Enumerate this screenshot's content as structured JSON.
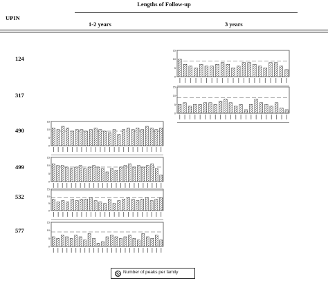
{
  "header": {
    "title": "Lengths of Follow-up",
    "upin_label": "UPIN",
    "col1": "1-2 years",
    "col2": "3 years"
  },
  "rows": [
    {
      "label": "124"
    },
    {
      "label": "317"
    },
    {
      "label": "490"
    },
    {
      "label": "499"
    },
    {
      "label": "532"
    },
    {
      "label": "577"
    }
  ],
  "legend": {
    "label": "Number of peaks per family"
  },
  "chart_data": [
    {
      "type": "bar",
      "upin": "124",
      "follow_up": "3 years",
      "ylim": [
        0,
        15
      ],
      "yticks": [
        "0",
        "5",
        "10",
        "15"
      ],
      "values": [
        10,
        7,
        6,
        5,
        7,
        6,
        6,
        7,
        8,
        7,
        5,
        6,
        8,
        8,
        7,
        6,
        5,
        8,
        8,
        6,
        4
      ]
    },
    {
      "type": "bar",
      "upin": "317",
      "follow_up": "3 years",
      "ylim": [
        0,
        15
      ],
      "yticks": [
        "0",
        "5",
        "10",
        "15"
      ],
      "values": [
        5,
        6,
        4,
        5,
        5,
        6,
        6,
        5,
        7,
        8,
        6,
        4,
        5,
        2,
        5,
        8,
        6,
        5,
        4,
        6,
        3,
        2
      ]
    },
    {
      "type": "bar",
      "upin": "490",
      "follow_up": "1-2 years",
      "ylim": [
        0,
        15
      ],
      "yticks": [
        "0",
        "5",
        "10",
        "15"
      ],
      "values": [
        11,
        10,
        12,
        11,
        9,
        10,
        10,
        9,
        10,
        11,
        10,
        9,
        8,
        10,
        7,
        10,
        11,
        10,
        11,
        10,
        12,
        11,
        10,
        11
      ]
    },
    {
      "type": "bar",
      "upin": "499",
      "follow_up": "1-2 years",
      "ylim": [
        0,
        15
      ],
      "yticks": [
        "0",
        "5",
        "10",
        "15"
      ],
      "values": [
        11,
        10,
        10,
        9,
        8,
        9,
        10,
        8,
        9,
        10,
        9,
        8,
        6,
        8,
        7,
        9,
        10,
        11,
        9,
        10,
        9,
        10,
        11,
        8,
        4
      ]
    },
    {
      "type": "bar",
      "upin": "532",
      "follow_up": "1-2 years",
      "ylim": [
        0,
        15
      ],
      "yticks": [
        "0",
        "5",
        "10",
        "15"
      ],
      "values": [
        8,
        6,
        7,
        6,
        8,
        7,
        8,
        8,
        9,
        7,
        6,
        5,
        8,
        5,
        7,
        8,
        9,
        8,
        7,
        8,
        9,
        7,
        8,
        9
      ]
    },
    {
      "type": "bar",
      "upin": "577",
      "follow_up": "1-2 years",
      "ylim": [
        0,
        15
      ],
      "yticks": [
        "0",
        "5",
        "10",
        "15"
      ],
      "values": [
        6,
        5,
        7,
        6,
        5,
        7,
        6,
        4,
        8,
        5,
        2,
        3,
        6,
        7,
        6,
        5,
        6,
        7,
        5,
        4,
        8,
        6,
        5,
        7,
        4
      ]
    }
  ]
}
